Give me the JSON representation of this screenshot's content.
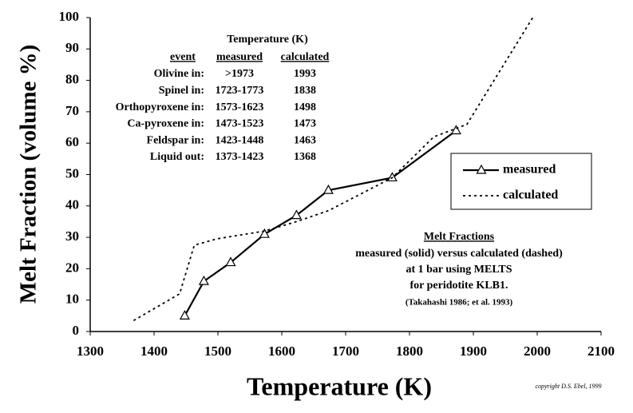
{
  "chart_data": {
    "type": "line",
    "xlabel": "Temperature (K)",
    "ylabel": "Melt Fraction (volume %)",
    "xlim": [
      1300,
      2100
    ],
    "xticks": [
      1300,
      1400,
      1500,
      1600,
      1700,
      1800,
      1900,
      2000,
      2100
    ],
    "ylim": [
      0,
      100
    ],
    "yticks": [
      0,
      10,
      20,
      30,
      40,
      50,
      60,
      70,
      80,
      90,
      100
    ],
    "grid": false,
    "legend": "right",
    "series": [
      {
        "name": "measured",
        "color": "#000000",
        "style": "solid",
        "marker": "triangle",
        "x": [
          1448,
          1478,
          1520,
          1573,
          1623,
          1673,
          1773,
          1873
        ],
        "values": [
          5,
          16,
          22,
          31,
          37,
          45,
          49,
          64
        ]
      },
      {
        "name": "calculated",
        "color": "#000000",
        "style": "dashed",
        "marker": "none",
        "x": [
          1368,
          1440,
          1463,
          1498,
          1573,
          1623,
          1673,
          1773,
          1838,
          1890,
          1993
        ],
        "values": [
          3.5,
          12,
          27.5,
          29.5,
          32,
          35,
          38.5,
          49,
          62,
          66,
          100
        ]
      }
    ],
    "table": {
      "title": "Temperature (K)",
      "headers": [
        "event",
        "measured",
        "calculated"
      ],
      "rows": [
        [
          "Olivine in:",
          ">1973",
          "1993"
        ],
        [
          "Spinel in:",
          "1723-1773",
          "1838"
        ],
        [
          "Orthopyroxene in:",
          "1573-1623",
          "1498"
        ],
        [
          "Ca-pyroxene in:",
          "1473-1523",
          "1473"
        ],
        [
          "Feldspar in:",
          "1423-1448",
          "1463"
        ],
        [
          "Liquid out:",
          "1373-1423",
          "1368"
        ]
      ]
    },
    "notes": {
      "title": "Melt Fractions",
      "lines": [
        "measured (solid) versus calculated (dashed)",
        "at 1 bar using MELTS",
        "for peridotite KLB1."
      ],
      "reference": "(Takahashi 1986; et al. 1993)"
    },
    "copyright": "copyright D.S. Ebel, 1999"
  }
}
